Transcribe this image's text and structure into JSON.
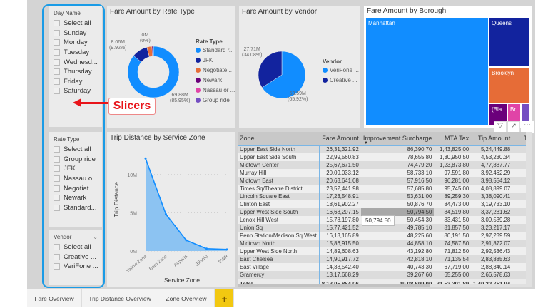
{
  "colors": {
    "accent": "#118dff",
    "dark_blue": "#12239e",
    "orange": "#e66c37",
    "purple": "#6b007b",
    "pink": "#e044a7",
    "violet": "#744ec2",
    "callout": "#e8141a",
    "tab_add": "#f2c811"
  },
  "slicers": {
    "day_name": {
      "title": "Day Name",
      "items": [
        "Select all",
        "Sunday",
        "Monday",
        "Tuesday",
        "Wednesd...",
        "Thursday",
        "Friday",
        "Saturday"
      ]
    },
    "rate_type": {
      "title": "Rate Type",
      "items": [
        "Select all",
        "Group ride",
        "JFK",
        "Nassau o...",
        "Negotiat...",
        "Newark",
        "Standard..."
      ]
    },
    "vendor": {
      "title": "Vendor",
      "chevron": "chevron-down-icon",
      "items": [
        "Select all",
        "Creative ...",
        "VeriFone ..."
      ]
    }
  },
  "callout": {
    "label": "Slicers",
    "icon": "arrow-left-icon"
  },
  "rate_chart": {
    "title": "Fare Amount by Rate Type",
    "legend_title": "Rate Type",
    "legend": [
      "Standard r...",
      "JFK",
      "Negotiate...",
      "Newark",
      "Nassau or ...",
      "Group ride"
    ],
    "slices": [
      {
        "name": "Standard rate",
        "pct": 85.95,
        "color": "#118dff"
      },
      {
        "name": "JFK",
        "pct": 9.92,
        "color": "#12239e"
      },
      {
        "name": "Negotiated",
        "pct": 3.2,
        "color": "#e66c37"
      },
      {
        "name": "Newark",
        "pct": 0.7,
        "color": "#6b007b"
      },
      {
        "name": "Nassau",
        "pct": 0.15,
        "color": "#e044a7"
      },
      {
        "name": "Group ride",
        "pct": 0.08,
        "color": "#744ec2"
      }
    ],
    "labels": {
      "standard": "69.88M",
      "standard_pct": "(85.95%)",
      "jfk": "8.06M",
      "jfk_pct": "(9.92%)",
      "small": "0M",
      "small_pct": "(0%)"
    }
  },
  "vendor_chart": {
    "title": "Fare Amount by Vendor",
    "legend_title": "Vendor",
    "legend": [
      "VeriFone ...",
      "Creative ..."
    ],
    "slices": [
      {
        "name": "VeriFone",
        "pct": 65.92,
        "color": "#118dff"
      },
      {
        "name": "Creative",
        "pct": 34.08,
        "color": "#12239e"
      }
    ],
    "labels": {
      "verifone": "53.59M",
      "verifone_pct": "(65.92%)",
      "creative": "27.71M",
      "creative_pct": "(34.08%)"
    }
  },
  "treemap": {
    "title": "Fare Amount by Borough",
    "tiles": [
      "Manhattan",
      "Queens",
      "Brooklyn",
      "(Bla...",
      "Br...",
      ""
    ],
    "toolbar": {
      "filter": "filter-icon",
      "focus": "focus-mode-icon",
      "more": "more-options-icon"
    }
  },
  "chart_data": {
    "type": "area",
    "title": "Trip Distance by Service Zone",
    "xlabel": "Service Zone",
    "ylabel": "Trip Distance",
    "categories": [
      "Yellow Zone",
      "Boro Zone",
      "Airports",
      "(Blank)",
      "EWR"
    ],
    "values": [
      12100000,
      4800000,
      1400000,
      300000,
      200000
    ],
    "ylim": [
      0,
      12500000
    ],
    "yticks": [
      0,
      5000000,
      10000000
    ],
    "ytick_labels": [
      "0M",
      "5M",
      "10M"
    ],
    "grid": true,
    "color": "#118dff"
  },
  "table": {
    "columns": [
      "Zone",
      "Fare Amount",
      "Improvement Surcharge",
      "MTA Tax",
      "Tip Amount",
      "Tolls A"
    ],
    "rows": [
      [
        "Upper East Side North",
        "26,31,321.92",
        "86,390.70",
        "1,43,825.00",
        "5,24,449.88"
      ],
      [
        "Upper East Side South",
        "22,99,560.83",
        "78,655.80",
        "1,30,950.50",
        "4,53,230.34"
      ],
      [
        "Midtown Center",
        "25,67,671.50",
        "74,479.20",
        "1,23,873.80",
        "4,77,887.77"
      ],
      [
        "Murray Hill",
        "20,09,033.12",
        "58,733.10",
        "97,591.80",
        "3,92,462.29"
      ],
      [
        "Midtown East",
        "20,63,641.08",
        "57,916.50",
        "96,281.00",
        "3,98,554.12"
      ],
      [
        "Times Sq/Theatre District",
        "23,52,441.98",
        "57,685.80",
        "95,745.00",
        "4,08,899.07"
      ],
      [
        "Lincoln Square East",
        "17,23,548.91",
        "53,631.00",
        "89,259.30",
        "3,38,090.41"
      ],
      [
        "Clinton East",
        "18,61,902.27",
        "50,876.70",
        "84,473.00",
        "3,19,733.10"
      ],
      [
        "Upper West Side South",
        "16,68,207.15",
        "50,794.50",
        "84,519.80",
        "3,37,281.62"
      ],
      [
        "Lenox Hill West",
        "15,78,197.80",
        "50,454.30",
        "83,431.50",
        "3,09,539.28"
      ],
      [
        "Union Sq",
        "15,77,421.52",
        "49,785.10",
        "81,857.50",
        "3,23,217.17"
      ],
      [
        "Penn Station/Madison Sq West",
        "16,13,165.89",
        "48,225.60",
        "80,191.50",
        "2,97,239.59"
      ],
      [
        "Midtown North",
        "15,86,915.50",
        "44,858.10",
        "74,587.50",
        "2,91,872.07"
      ],
      [
        "Upper West Side North",
        "14,89,608.63",
        "43,192.80",
        "71,812.50",
        "2,92,536.43"
      ],
      [
        "East Chelsea",
        "14,90,917.72",
        "42,818.10",
        "71,135.54",
        "2,83,885.63"
      ],
      [
        "East Village",
        "14,38,542.40",
        "40,743.30",
        "67,719.00",
        "2,88,340.14"
      ],
      [
        "Gramercy",
        "13,17,668.29",
        "39,267.60",
        "65,255.00",
        "2,66,578.63"
      ]
    ],
    "total": [
      "Total",
      "8,13,05,864.06",
      "19,08,609.00",
      "31,53,301.89",
      "1,40,22,751.94",
      "22,3"
    ],
    "tooltip": "50,794.50",
    "sort_icon": "sort-descending-icon"
  },
  "tabs": [
    "Fare Overview",
    "Trip Distance Overview",
    "Zone Overview"
  ],
  "add_tab": "+"
}
